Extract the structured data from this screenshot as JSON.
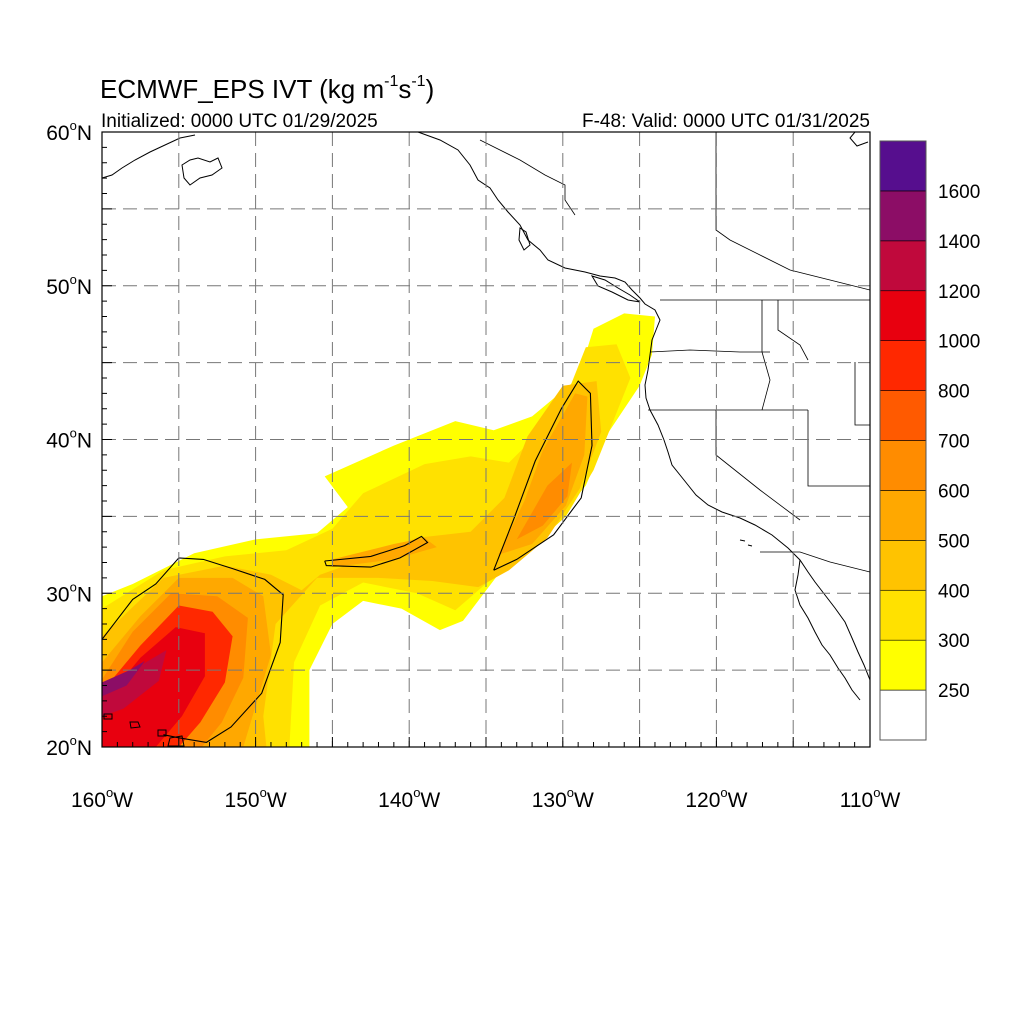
{
  "header": {
    "title_text": "ECMWF_EPS IVT (kg m",
    "title_exp1": "-1",
    "title_mid": "s",
    "title_exp2": "-1",
    "title_end": ")",
    "initialized": "Initialized: 0000 UTC 01/29/2025",
    "valid": "F-48: Valid: 0000 UTC 01/31/2025"
  },
  "map": {
    "lon_range": [
      -160,
      -110
    ],
    "lat_range": [
      20,
      60
    ],
    "lat_ticks": [
      {
        "value": 60,
        "label": "60",
        "hemi": "N"
      },
      {
        "value": 50,
        "label": "50",
        "hemi": "N"
      },
      {
        "value": 40,
        "label": "40",
        "hemi": "N"
      },
      {
        "value": 30,
        "label": "30",
        "hemi": "N"
      },
      {
        "value": 20,
        "label": "20",
        "hemi": "N"
      }
    ],
    "lon_ticks": [
      {
        "value": -160,
        "label": "160",
        "hemi": "W"
      },
      {
        "value": -150,
        "label": "150",
        "hemi": "W"
      },
      {
        "value": -140,
        "label": "140",
        "hemi": "W"
      },
      {
        "value": -130,
        "label": "130",
        "hemi": "W"
      },
      {
        "value": -120,
        "label": "120",
        "hemi": "W"
      },
      {
        "value": -110,
        "label": "110",
        "hemi": "W"
      }
    ],
    "grid_lats": [
      25,
      30,
      35,
      40,
      45,
      50,
      55
    ],
    "grid_lons": [
      -155,
      -150,
      -145,
      -140,
      -135,
      -130,
      -125,
      -120,
      -115
    ],
    "gridlines": "dashed"
  },
  "colorbar": {
    "levels": [
      250,
      300,
      400,
      500,
      600,
      700,
      800,
      1000,
      1200,
      1400,
      1600
    ],
    "colors": [
      "#ffffff",
      "#ffff00",
      "#ffe100",
      "#ffc300",
      "#ffa800",
      "#ff8c00",
      "#ff5a00",
      "#ff2800",
      "#e8000f",
      "#c0093c",
      "#8c0d66",
      "#560e8e"
    ]
  },
  "ivt_field": {
    "description_levels": "kg m-1 s-1",
    "regions": [
      {
        "level": 250,
        "points": [
          [
            -160,
            29.8
          ],
          [
            -158,
            30.6
          ],
          [
            -154,
            32.6
          ],
          [
            -150,
            33.5
          ],
          [
            -146,
            33.9
          ],
          [
            -144,
            35.6
          ],
          [
            -145.5,
            37.6
          ],
          [
            -141,
            39.6
          ],
          [
            -137,
            41.2
          ],
          [
            -134.5,
            40.6
          ],
          [
            -132,
            41.5
          ],
          [
            -129,
            44
          ],
          [
            -128,
            47.2
          ],
          [
            -126,
            48.2
          ],
          [
            -124,
            48
          ],
          [
            -124.2,
            45.5
          ],
          [
            -125,
            43.5
          ],
          [
            -127,
            40.5
          ],
          [
            -128.5,
            37
          ],
          [
            -131,
            34
          ],
          [
            -134,
            31.5
          ],
          [
            -136.5,
            28.2
          ],
          [
            -138,
            27.6
          ],
          [
            -140.5,
            29
          ],
          [
            -143,
            29.5
          ],
          [
            -145,
            28
          ],
          [
            -146.5,
            25
          ],
          [
            -146.5,
            20
          ],
          [
            -160,
            20
          ]
        ]
      },
      {
        "level": 300,
        "points": [
          [
            -160,
            29
          ],
          [
            -156,
            31.5
          ],
          [
            -152,
            32.4
          ],
          [
            -148,
            32.8
          ],
          [
            -145,
            34.2
          ],
          [
            -143,
            36.5
          ],
          [
            -139,
            38.4
          ],
          [
            -136,
            38.9
          ],
          [
            -133.5,
            38.5
          ],
          [
            -131,
            41
          ],
          [
            -129.5,
            43.5
          ],
          [
            -128.5,
            46
          ],
          [
            -126.5,
            46.2
          ],
          [
            -125.6,
            44
          ],
          [
            -126.8,
            41
          ],
          [
            -128,
            38
          ],
          [
            -129.8,
            35
          ],
          [
            -132,
            33
          ],
          [
            -134.8,
            30.8
          ],
          [
            -137,
            28.9
          ],
          [
            -139.5,
            30
          ],
          [
            -143,
            30.7
          ],
          [
            -145.8,
            29.2
          ],
          [
            -147.5,
            25.5
          ],
          [
            -147.8,
            20
          ],
          [
            -160,
            20
          ]
        ]
      },
      {
        "level": 400,
        "points": [
          [
            -160,
            27.2
          ],
          [
            -156,
            31
          ],
          [
            -152,
            31.8
          ],
          [
            -149,
            31.2
          ],
          [
            -147,
            30.2
          ],
          [
            -145.8,
            31.2
          ],
          [
            -143,
            32.2
          ],
          [
            -139.5,
            33.6
          ],
          [
            -136,
            34
          ],
          [
            -133.8,
            36.2
          ],
          [
            -132.3,
            40.2
          ],
          [
            -130,
            43.5
          ],
          [
            -127.8,
            43.8
          ],
          [
            -127.5,
            40.5
          ],
          [
            -128.9,
            36.8
          ],
          [
            -131,
            33.6
          ],
          [
            -133.5,
            31.5
          ],
          [
            -135.5,
            30.4
          ],
          [
            -138.5,
            30.8
          ],
          [
            -142,
            31
          ],
          [
            -146,
            31
          ],
          [
            -148.7,
            28
          ],
          [
            -149.5,
            22
          ],
          [
            -149.3,
            20
          ],
          [
            -160,
            20
          ]
        ]
      },
      {
        "level": 500,
        "points": [
          [
            -160,
            25.5
          ],
          [
            -157.5,
            28.5
          ],
          [
            -155,
            31
          ],
          [
            -151.5,
            31
          ],
          [
            -149.5,
            29.8
          ],
          [
            -149,
            26
          ],
          [
            -150.2,
            22
          ],
          [
            -150.8,
            20
          ],
          [
            -160,
            20
          ]
        ]
      },
      {
        "level": 500,
        "points": [
          [
            -145,
            32.2
          ],
          [
            -141,
            33.2
          ],
          [
            -139,
            33.6
          ],
          [
            -138.2,
            33
          ],
          [
            -141,
            32.2
          ],
          [
            -145,
            31.7
          ]
        ]
      },
      {
        "level": 500,
        "points": [
          [
            -134.2,
            32.5
          ],
          [
            -132.5,
            36
          ],
          [
            -131.3,
            39.3
          ],
          [
            -129.2,
            43
          ],
          [
            -128.4,
            42.8
          ],
          [
            -128.6,
            39
          ],
          [
            -129.8,
            35.7
          ],
          [
            -132,
            33.2
          ]
        ]
      },
      {
        "level": 600,
        "points": [
          [
            -160,
            24.4
          ],
          [
            -158,
            27.5
          ],
          [
            -155.5,
            30
          ],
          [
            -152.5,
            29.8
          ],
          [
            -150.5,
            28.4
          ],
          [
            -150.8,
            24.5
          ],
          [
            -152.2,
            21.6
          ],
          [
            -153.5,
            20
          ],
          [
            -160,
            20
          ]
        ]
      },
      {
        "level": 600,
        "points": [
          [
            -133,
            33.5
          ],
          [
            -131,
            37
          ],
          [
            -129.4,
            38.5
          ],
          [
            -129.7,
            36.3
          ],
          [
            -131.3,
            34.4
          ]
        ]
      },
      {
        "level": 800,
        "points": [
          [
            -160,
            23.6
          ],
          [
            -157.5,
            26.6
          ],
          [
            -155,
            29.2
          ],
          [
            -152.8,
            28.8
          ],
          [
            -151.5,
            27.2
          ],
          [
            -152,
            24.2
          ],
          [
            -153.6,
            21.6
          ],
          [
            -155,
            20
          ],
          [
            -160,
            20
          ]
        ]
      },
      {
        "level": 1000,
        "points": [
          [
            -160,
            22.8
          ],
          [
            -157.5,
            25.8
          ],
          [
            -155.2,
            27.8
          ],
          [
            -153.3,
            27.4
          ],
          [
            -153.3,
            24.6
          ],
          [
            -154.8,
            22
          ],
          [
            -156.5,
            20
          ],
          [
            -160,
            20
          ]
        ]
      },
      {
        "level": 1200,
        "points": [
          [
            -160,
            23.3
          ],
          [
            -157.5,
            25.3
          ],
          [
            -155.8,
            26.3
          ],
          [
            -156.3,
            24.3
          ],
          [
            -158.6,
            22.5
          ],
          [
            -160,
            22
          ]
        ]
      },
      {
        "level": 1400,
        "points": [
          [
            -160,
            24.2
          ],
          [
            -158.2,
            25
          ],
          [
            -157.2,
            25.6
          ],
          [
            -158.4,
            24
          ],
          [
            -160,
            23.3
          ]
        ]
      }
    ],
    "contours": [
      [
        [
          -160,
          27
        ],
        [
          -158,
          29.6
        ],
        [
          -156.5,
          30.6
        ],
        [
          -155,
          32.3
        ],
        [
          -153.4,
          32.2
        ],
        [
          -151.5,
          31.6
        ],
        [
          -149.4,
          30.9
        ],
        [
          -148.2,
          29.9
        ],
        [
          -148.4,
          26.8
        ],
        [
          -149.6,
          23.5
        ],
        [
          -151.6,
          21.3
        ],
        [
          -153.2,
          20.3
        ],
        [
          -155,
          20.6
        ],
        [
          -156,
          20.8
        ]
      ],
      [
        [
          -145.5,
          32.1
        ],
        [
          -142.5,
          32.4
        ],
        [
          -140.3,
          33.1
        ],
        [
          -139.2,
          33.7
        ],
        [
          -138.8,
          33.3
        ],
        [
          -140.6,
          32.3
        ],
        [
          -142.5,
          31.7
        ],
        [
          -145.4,
          31.8
        ],
        [
          -145.5,
          32.1
        ]
      ],
      [
        [
          -134.5,
          31.5
        ],
        [
          -133.2,
          34.8
        ],
        [
          -131.8,
          38.6
        ],
        [
          -130.1,
          42
        ],
        [
          -129,
          43.8
        ],
        [
          -128.2,
          43
        ],
        [
          -128.1,
          39.6
        ],
        [
          -128.8,
          36.2
        ],
        [
          -130.6,
          33.8
        ],
        [
          -133,
          32.2
        ],
        [
          -134.5,
          31.5
        ]
      ]
    ]
  }
}
